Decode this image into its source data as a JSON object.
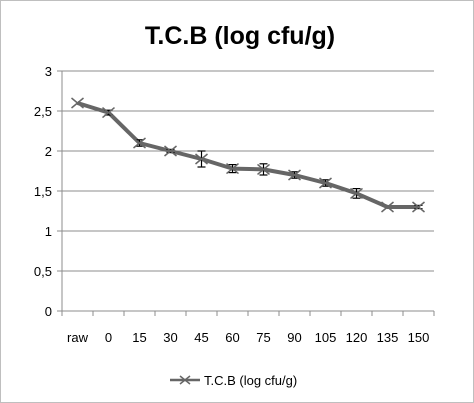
{
  "chart_data": {
    "type": "line",
    "title": "T.C.B (log cfu/g)",
    "xlabel": "",
    "ylabel": "",
    "categories": [
      "raw",
      "0",
      "15",
      "30",
      "45",
      "60",
      "75",
      "90",
      "105",
      "120",
      "135",
      "150"
    ],
    "series": [
      {
        "name": "T.C.B (log cfu/g)",
        "values": [
          2.6,
          2.48,
          2.1,
          2.0,
          1.9,
          1.78,
          1.77,
          1.7,
          1.6,
          1.47,
          1.3,
          1.3
        ],
        "error": [
          0,
          0.03,
          0.04,
          0.02,
          0.1,
          0.05,
          0.07,
          0.04,
          0.04,
          0.06,
          0,
          0.02
        ],
        "color": "#666666",
        "marker": "x"
      }
    ],
    "ylim": [
      0,
      3
    ],
    "yticks": [
      0,
      0.5,
      1,
      1.5,
      2,
      2.5,
      3
    ],
    "ytick_labels": [
      "0",
      "0,5",
      "1",
      "1,5",
      "2",
      "2,5",
      "3"
    ],
    "grid": true,
    "legend_position": "bottom"
  }
}
